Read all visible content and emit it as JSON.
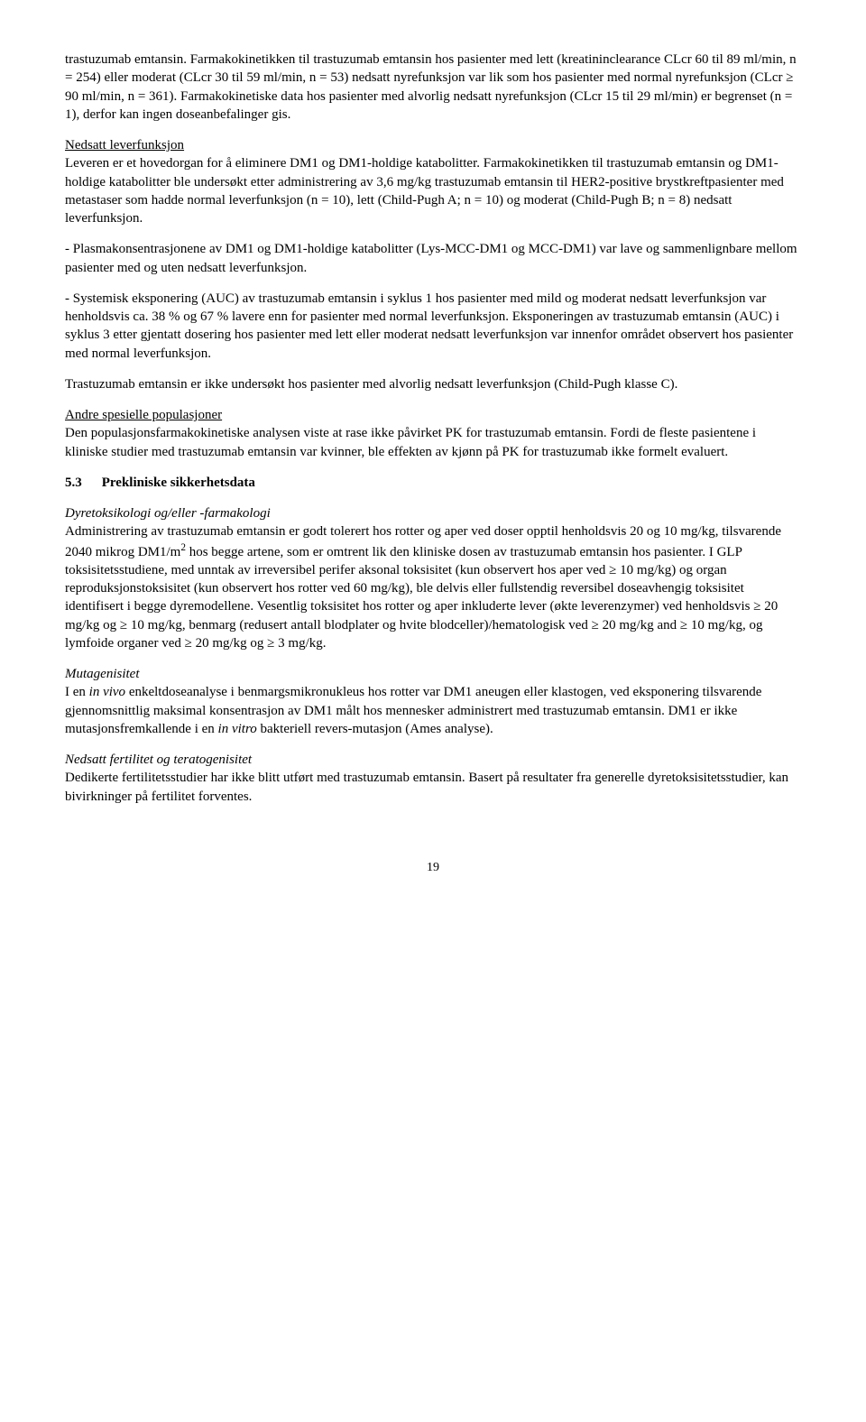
{
  "p1": "trastuzumab emtansin. Farmakokinetikken til trastuzumab emtansin hos pasienter med lett (kreatininclearance CLcr 60 til 89 ml/min, n = 254) eller moderat (CLcr 30 til 59 ml/min, n = 53) nedsatt nyrefunksjon var lik som hos pasienter med normal nyrefunksjon (CLcr ≥ 90 ml/min, n = 361). Farmakokinetiske data hos pasienter med alvorlig nedsatt nyrefunksjon (CLcr 15 til 29 ml/min) er begrenset (n = 1), derfor kan ingen doseanbefalinger gis.",
  "h1": "Nedsatt leverfunksjon",
  "p2": "Leveren er et hovedorgan for å eliminere DM1 og DM1-holdige katabolitter. Farmakokinetikken til trastuzumab emtansin og DM1-holdige katabolitter ble undersøkt etter administrering av 3,6 mg/kg trastuzumab emtansin til HER2-positive brystkreftpasienter med metastaser som hadde normal leverfunksjon (n = 10), lett (Child-Pugh A; n = 10) og moderat (Child-Pugh B; n = 8) nedsatt leverfunksjon.",
  "p3": "- Plasmakonsentrasjonene av DM1 og DM1-holdige katabolitter (Lys-MCC-DM1 og MCC-DM1) var lave og sammenlignbare mellom pasienter med og uten nedsatt leverfunksjon.",
  "p4": "- Systemisk eksponering (AUC) av trastuzumab emtansin i syklus 1 hos pasienter med mild og moderat nedsatt leverfunksjon var henholdsvis ca. 38 % og 67 % lavere enn for pasienter med normal leverfunksjon. Eksponeringen av trastuzumab emtansin (AUC) i syklus 3 etter gjentatt dosering hos pasienter med lett eller moderat nedsatt leverfunksjon var innenfor området observert hos pasienter med normal leverfunksjon.",
  "p5": "Trastuzumab emtansin er ikke undersøkt hos pasienter med alvorlig nedsatt leverfunksjon (Child-Pugh klasse C).",
  "h2": "Andre spesielle populasjoner",
  "p6": "Den populasjonsfarmakokinetiske analysen viste at rase ikke påvirket PK for trastuzumab emtansin. Fordi de fleste pasientene i kliniske studier med trastuzumab emtansin var kvinner, ble effekten av kjønn på PK for trastuzumab ikke formelt evaluert.",
  "sec_num": "5.3",
  "sec_title": "Prekliniske sikkerhetsdata",
  "h3": "Dyretoksikologi og/eller -farmakologi",
  "p7a": "Administrering av trastuzumab emtansin er godt tolerert hos rotter og aper ved doser opptil henholdsvis 20 og 10 mg/kg, tilsvarende 2040 mikrog DM1/m",
  "p7b": " hos begge artene, som er omtrent lik den kliniske dosen av trastuzumab emtansin hos pasienter. I GLP toksisitetsstudiene, med unntak av irreversibel perifer aksonal toksisitet (kun observert hos aper ved  ≥ 10 mg/kg) og organ reproduksjonstoksisitet (kun observert hos rotter ved 60 mg/kg), ble delvis eller fullstendig reversibel doseavhengig toksisitet identifisert i begge dyremodellene. Vesentlig toksisitet hos rotter og aper inkluderte lever (økte leverenzymer) ved henholdsvis ≥ 20 mg/kg og ≥ 10 mg/kg, benmarg (redusert antall blodplater og hvite blodceller)/hematologisk ved ≥ 20 mg/kg and ≥ 10 mg/kg, og lymfoide organer ved ≥ 20 mg/kg og ≥ 3 mg/kg.",
  "h4": "Mutagenisitet",
  "p8a": "I en ",
  "p8b": "in vivo",
  "p8c": " enkeltdoseanalyse i benmargsmikronukleus hos rotter var DM1 aneugen eller klastogen, ved eksponering tilsvarende gjennomsnittlig maksimal konsentrasjon av DM1 målt hos mennesker administrert med trastuzumab emtansin. DM1 er ikke mutasjonsfremkallende i en ",
  "p8d": "in vitro",
  "p8e": " bakteriell revers-mutasjon (Ames analyse).",
  "h5": "Nedsatt fertilitet og teratogenisitet",
  "p9": "Dedikerte fertilitetsstudier har ikke blitt utført med trastuzumab emtansin. Basert på resultater fra generelle dyretoksisitetsstudier, kan bivirkninger på fertilitet forventes.",
  "page": "19"
}
